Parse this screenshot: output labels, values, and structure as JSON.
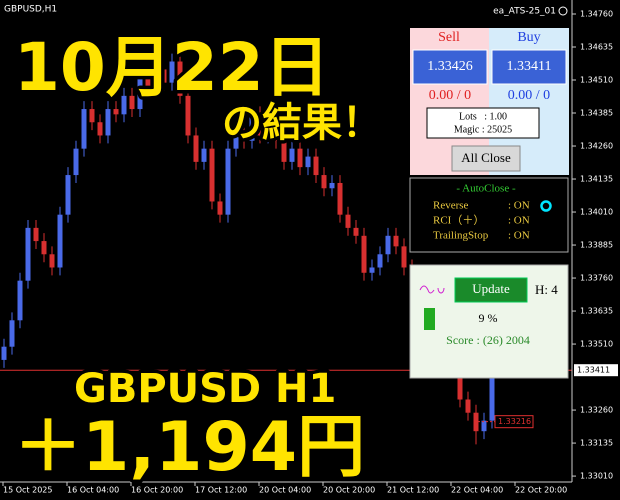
{
  "header": {
    "symbol": "GBPUSD,H1",
    "ea": "ea_ATS-25_01"
  },
  "chart": {
    "type": "candlestick",
    "up_color": "#4a6ae8",
    "down_color": "#d83030",
    "ylim": [
      1.3298,
      1.34813
    ],
    "yticks": [
      {
        "value": 1.3476,
        "label": "1.34760"
      },
      {
        "value": 1.34635,
        "label": "1.34635"
      },
      {
        "value": 1.3451,
        "label": "1.34510"
      },
      {
        "value": 1.34385,
        "label": "1.34385"
      },
      {
        "value": 1.3426,
        "label": "1.34260"
      },
      {
        "value": 1.34135,
        "label": "1.34135"
      },
      {
        "value": 1.3401,
        "label": "1.34010"
      },
      {
        "value": 1.33885,
        "label": "1.33885"
      },
      {
        "value": 1.3376,
        "label": "1.33760"
      },
      {
        "value": 1.33635,
        "label": "1.33635"
      },
      {
        "value": 1.3351,
        "label": "1.33510"
      },
      {
        "value": 1.3326,
        "label": "1.33260"
      },
      {
        "value": 1.33135,
        "label": "1.33135"
      },
      {
        "value": 1.3301,
        "label": "1.33010"
      }
    ],
    "current_price": {
      "value": 1.33411,
      "label": "1.33411"
    },
    "order_label": {
      "value": 1.33216,
      "label": "1.33216"
    },
    "x_labels": [
      "15 Oct 2025",
      "16 Oct 04:00",
      "16 Oct 20:00",
      "17 Oct 12:00",
      "20 Oct 04:00",
      "20 Oct 20:00",
      "21 Oct 12:00",
      "22 Oct 04:00",
      "22 Oct 20:00"
    ],
    "ohlc": [
      [
        1.3345,
        1.3353,
        1.3342,
        1.335
      ],
      [
        1.335,
        1.3363,
        1.3347,
        1.336
      ],
      [
        1.336,
        1.3378,
        1.3357,
        1.3375
      ],
      [
        1.3375,
        1.3398,
        1.3372,
        1.3395
      ],
      [
        1.3395,
        1.3398,
        1.3387,
        1.339
      ],
      [
        1.339,
        1.3393,
        1.3382,
        1.3385
      ],
      [
        1.3385,
        1.3388,
        1.3377,
        1.338
      ],
      [
        1.338,
        1.3403,
        1.3377,
        1.34
      ],
      [
        1.34,
        1.3418,
        1.3397,
        1.3415
      ],
      [
        1.3415,
        1.3428,
        1.3412,
        1.3425
      ],
      [
        1.3425,
        1.3443,
        1.3422,
        1.344
      ],
      [
        1.344,
        1.3443,
        1.3432,
        1.3435
      ],
      [
        1.3435,
        1.3438,
        1.3427,
        1.343
      ],
      [
        1.343,
        1.3443,
        1.3427,
        1.344
      ],
      [
        1.344,
        1.3443,
        1.3435,
        1.3438
      ],
      [
        1.3438,
        1.3448,
        1.3435,
        1.3445
      ],
      [
        1.3445,
        1.3448,
        1.3437,
        1.344
      ],
      [
        1.344,
        1.3455,
        1.3437,
        1.3452
      ],
      [
        1.3452,
        1.3455,
        1.3445,
        1.3448
      ],
      [
        1.3448,
        1.3458,
        1.3445,
        1.3455
      ],
      [
        1.3455,
        1.3458,
        1.3447,
        1.345
      ],
      [
        1.345,
        1.3461,
        1.3447,
        1.3458
      ],
      [
        1.3458,
        1.3461,
        1.3442,
        1.3445
      ],
      [
        1.3445,
        1.3448,
        1.3427,
        1.343
      ],
      [
        1.343,
        1.3433,
        1.3417,
        1.342
      ],
      [
        1.342,
        1.3428,
        1.3417,
        1.3425
      ],
      [
        1.3425,
        1.3428,
        1.3402,
        1.3405
      ],
      [
        1.3405,
        1.3408,
        1.3397,
        1.34
      ],
      [
        1.34,
        1.3428,
        1.3397,
        1.3425
      ],
      [
        1.3425,
        1.3435,
        1.3422,
        1.3432
      ],
      [
        1.3432,
        1.3435,
        1.3425,
        1.3428
      ],
      [
        1.3428,
        1.3441,
        1.3425,
        1.3438
      ],
      [
        1.3438,
        1.3441,
        1.3427,
        1.343
      ],
      [
        1.343,
        1.3438,
        1.3427,
        1.3435
      ],
      [
        1.3435,
        1.3438,
        1.3425,
        1.3428
      ],
      [
        1.3428,
        1.3431,
        1.3417,
        1.342
      ],
      [
        1.342,
        1.3428,
        1.3417,
        1.3425
      ],
      [
        1.3425,
        1.3428,
        1.3415,
        1.3418
      ],
      [
        1.3418,
        1.3425,
        1.3415,
        1.3422
      ],
      [
        1.3422,
        1.3425,
        1.3412,
        1.3415
      ],
      [
        1.3415,
        1.3418,
        1.3407,
        1.341
      ],
      [
        1.341,
        1.3415,
        1.3407,
        1.3412
      ],
      [
        1.3412,
        1.3415,
        1.3397,
        1.34
      ],
      [
        1.34,
        1.3403,
        1.3392,
        1.3395
      ],
      [
        1.3395,
        1.3398,
        1.3389,
        1.3392
      ],
      [
        1.3392,
        1.3395,
        1.3375,
        1.3378
      ],
      [
        1.3378,
        1.3383,
        1.3375,
        1.338
      ],
      [
        1.338,
        1.3388,
        1.3377,
        1.3385
      ],
      [
        1.3385,
        1.3395,
        1.3382,
        1.3392
      ],
      [
        1.3392,
        1.3395,
        1.3385,
        1.3388
      ],
      [
        1.3388,
        1.3391,
        1.3377,
        1.338
      ],
      [
        1.338,
        1.3383,
        1.3369,
        1.3372
      ],
      [
        1.3372,
        1.3375,
        1.3362,
        1.3365
      ],
      [
        1.3365,
        1.3373,
        1.3362,
        1.337
      ],
      [
        1.337,
        1.3373,
        1.3355,
        1.3358
      ],
      [
        1.3358,
        1.3361,
        1.3347,
        1.335
      ],
      [
        1.335,
        1.3353,
        1.3342,
        1.3345
      ],
      [
        1.3345,
        1.3348,
        1.3327,
        1.333
      ],
      [
        1.333,
        1.3333,
        1.3322,
        1.3325
      ],
      [
        1.3325,
        1.3328,
        1.3313,
        1.3318
      ],
      [
        1.3318,
        1.3325,
        1.3315,
        1.3322
      ],
      [
        1.3322,
        1.3344,
        1.3319,
        1.33411
      ]
    ]
  },
  "overlay": {
    "date": "10月22日",
    "result": "の結果！",
    "pair": "GBPUSD H1",
    "profit": "＋1,194円"
  },
  "trade_panel": {
    "sell": "Sell",
    "buy": "Buy",
    "sell_price": "1.33426",
    "buy_price": "1.33411",
    "sell_pos": "0.00 / 0",
    "buy_pos": "0.00 / 0",
    "lots": "Lots   : 1.00",
    "magic": "Magic : 25025",
    "close": "All Close"
  },
  "autoclose_panel": {
    "title": "- AutoClose -",
    "rows": [
      [
        "Reverse",
        ": ON"
      ],
      [
        "RCI（＋）",
        ": ON"
      ],
      [
        "TrailingStop",
        ": ON"
      ]
    ]
  },
  "status_panel": {
    "update": "Update",
    "hour": "H: 4",
    "percent": "9 %",
    "score": "Score : (26) 2004"
  }
}
